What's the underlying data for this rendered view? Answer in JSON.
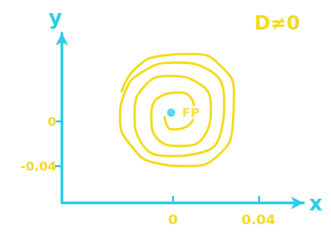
{
  "chart_data": {
    "type": "line",
    "title": "D≠0",
    "x_label": "x",
    "y_label": "y",
    "x": [
      -0.0242,
      -0.018,
      -0.0056,
      0.0099,
      0.0223,
      0.0285,
      0.0279,
      0.0208,
      0.0068,
      -0.0087,
      -0.0195,
      -0.0248,
      -0.0226,
      -0.0149,
      0.0006,
      0.0161,
      0.0239,
      0.0223,
      0.013,
      -0.0025,
      -0.0149,
      -0.018,
      -0.0133,
      -0.0025,
      0.0115,
      0.0177,
      0.0146,
      0.0037,
      -0.0071,
      -0.0102,
      -0.0056,
      0.0037,
      0.0099,
      0.0068,
      -0.0009,
      -0.004
    ],
    "values": [
      0.0257,
      0.0466,
      0.0585,
      0.0603,
      0.0496,
      0.0257,
      -0.0042,
      -0.031,
      -0.04,
      -0.037,
      -0.0221,
      0.0018,
      0.0257,
      0.0436,
      0.0525,
      0.0466,
      0.0197,
      -0.0101,
      -0.0281,
      -0.031,
      -0.0191,
      0.0078,
      0.0316,
      0.0406,
      0.0346,
      0.0137,
      -0.0131,
      -0.0221,
      -0.0161,
      0.0048,
      0.0227,
      0.0257,
      0.0107,
      -0.0042,
      -0.0072,
      0.0048
    ],
    "color": "#f2dc1f",
    "line_style": "solid",
    "marker": "none",
    "fixed_point": {
      "label": "FP",
      "x": -0.0009,
      "y": 0.0078,
      "color": "#2ccfe6"
    },
    "xlim": [
      -0.052,
      0.061
    ],
    "xticks": [
      0,
      0.04
    ],
    "ylim": [
      -0.073,
      0.079
    ],
    "yticks": [
      -0.04,
      0
    ],
    "grid": false
  }
}
